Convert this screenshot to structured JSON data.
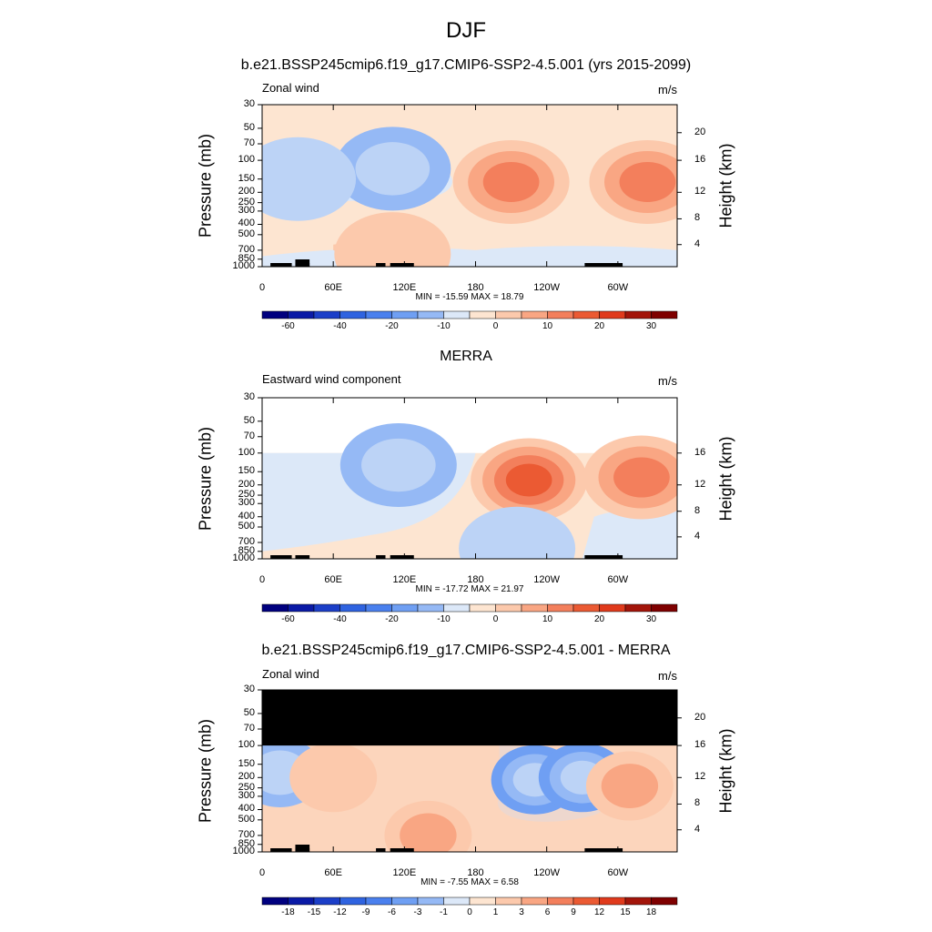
{
  "figure": {
    "title": "DJF"
  },
  "colors": {
    "neg": [
      "#00007f",
      "#0a1aa6",
      "#1c3fc8",
      "#2f63e0",
      "#4a80ee",
      "#6f9ff3",
      "#95b9f5",
      "#bcd3f6",
      "#dce8f8"
    ],
    "neg_light": "#cfe1f7",
    "pos": [
      "#fde5d1",
      "#fcc9ac",
      "#f9a683",
      "#f37f5c",
      "#eb5a33",
      "#e03a1c",
      "#c42a10",
      "#a3150a",
      "#7f0000"
    ],
    "masked": "#000000",
    "land": "#000000"
  },
  "panels": [
    {
      "title": "b.e21.BSSP245cmip6.f19_g17.CMIP6-SSP2-4.5.001 (yrs 2015-2099)",
      "left_label": "Zonal wind",
      "right_label": "m/s",
      "ylabel": "Pressure (mb)",
      "ylabel_right": "Height (km)",
      "pressure_ticks": [
        "30",
        "50",
        "70",
        "100",
        "150",
        "200",
        "250",
        "300",
        "400",
        "500",
        "700",
        "850",
        "1000"
      ],
      "height_ticks": [
        "20",
        "16",
        "12",
        "8",
        "4"
      ],
      "lon_ticks": [
        "0",
        "60E",
        "120E",
        "180",
        "120W",
        "60W"
      ],
      "stats": "MIN = -15.59  MAX =  18.79",
      "colorbar_labels": [
        "-60",
        "-40",
        "-20",
        "-10",
        "0",
        "10",
        "20",
        "30"
      ],
      "masked_top": false,
      "blank_top": false
    },
    {
      "title": "MERRA",
      "left_label": "Eastward wind component",
      "right_label": "m/s",
      "ylabel": "Pressure (mb)",
      "ylabel_right": "Height (km)",
      "pressure_ticks": [
        "30",
        "50",
        "70",
        "100",
        "150",
        "200",
        "250",
        "300",
        "400",
        "500",
        "700",
        "850",
        "1000"
      ],
      "height_ticks": [
        "16",
        "12",
        "8",
        "4"
      ],
      "lon_ticks": [
        "0",
        "60E",
        "120E",
        "180",
        "120W",
        "60W"
      ],
      "stats": "MIN = -17.72  MAX =  21.97",
      "colorbar_labels": [
        "-60",
        "-40",
        "-20",
        "-10",
        "0",
        "10",
        "20",
        "30"
      ],
      "masked_top": false,
      "blank_top": true
    },
    {
      "title": "b.e21.BSSP245cmip6.f19_g17.CMIP6-SSP2-4.5.001 - MERRA",
      "left_label": "Zonal wind",
      "right_label": "m/s",
      "ylabel": "Pressure (mb)",
      "ylabel_right": "Height (km)",
      "pressure_ticks": [
        "30",
        "50",
        "70",
        "100",
        "150",
        "200",
        "250",
        "300",
        "400",
        "500",
        "700",
        "850",
        "1000"
      ],
      "height_ticks": [
        "20",
        "16",
        "12",
        "8",
        "4"
      ],
      "lon_ticks": [
        "0",
        "60E",
        "120E",
        "180",
        "120W",
        "60W"
      ],
      "stats": "MIN = -7.55  MAX =  6.58",
      "colorbar_labels": [
        "-18",
        "-15",
        "-12",
        "-9",
        "-6",
        "-3",
        "-1",
        "0",
        "1",
        "3",
        "6",
        "9",
        "12",
        "15",
        "18"
      ],
      "masked_top": true,
      "blank_top": false
    }
  ],
  "chart_data": [
    {
      "type": "heatmap",
      "title": "b.e21.BSSP245cmip6.f19_g17.CMIP6-SSP2-4.5.001 (yrs 2015-2099)",
      "variable": "Zonal wind",
      "units": "m/s",
      "xlabel": "",
      "ylabel": "Pressure (mb)",
      "ylabel_right": "Height (km)",
      "xlim": [
        0,
        350
      ],
      "ylim": [
        1000,
        30
      ],
      "y_scale": "log",
      "min": -15.59,
      "max": 18.79,
      "features": [
        {
          "lon": 210,
          "p": 160,
          "value": 18.79
        },
        {
          "lon": 325,
          "p": 160,
          "value": 17
        },
        {
          "lon": 110,
          "p": 120,
          "value": -12
        },
        {
          "lon": 30,
          "p": 150,
          "value": -6
        },
        {
          "lon": 110,
          "p": 760,
          "value": 5
        }
      ],
      "levels": [
        -60,
        -50,
        -40,
        -30,
        -20,
        -15,
        -10,
        -5,
        0,
        5,
        10,
        15,
        20,
        25,
        30,
        35
      ]
    },
    {
      "type": "heatmap",
      "title": "MERRA",
      "variable": "Eastward wind component",
      "units": "m/s",
      "xlabel": "",
      "ylabel": "Pressure (mb)",
      "ylabel_right": "Height (km)",
      "xlim": [
        0,
        350
      ],
      "ylim": [
        1000,
        30
      ],
      "y_scale": "log",
      "min": -17.72,
      "max": 21.97,
      "features": [
        {
          "lon": 225,
          "p": 180,
          "value": 21.97
        },
        {
          "lon": 320,
          "p": 170,
          "value": 15
        },
        {
          "lon": 115,
          "p": 130,
          "value": -12
        },
        {
          "lon": 215,
          "p": 800,
          "value": -6
        },
        {
          "lon": 80,
          "p": 800,
          "value": 4
        }
      ],
      "levels": [
        -60,
        -50,
        -40,
        -30,
        -20,
        -15,
        -10,
        -5,
        0,
        5,
        10,
        15,
        20,
        25,
        30,
        35
      ]
    },
    {
      "type": "heatmap",
      "title": "b.e21.BSSP245cmip6.f19_g17.CMIP6-SSP2-4.5.001 - MERRA",
      "variable": "Zonal wind",
      "units": "m/s",
      "xlabel": "",
      "ylabel": "Pressure (mb)",
      "ylabel_right": "Height (km)",
      "xlim": [
        0,
        350
      ],
      "ylim": [
        1000,
        30
      ],
      "y_scale": "log",
      "min": -7.55,
      "max": 6.58,
      "features": [
        {
          "lon": 230,
          "p": 210,
          "value": -7.55
        },
        {
          "lon": 270,
          "p": 200,
          "value": -6
        },
        {
          "lon": 140,
          "p": 700,
          "value": 4
        },
        {
          "lon": 15,
          "p": 180,
          "value": -3
        },
        {
          "lon": 60,
          "p": 200,
          "value": 2
        },
        {
          "lon": 310,
          "p": 240,
          "value": 3
        }
      ],
      "levels": [
        -21,
        -18,
        -15,
        -12,
        -9,
        -6,
        -3,
        -1,
        0,
        1,
        3,
        6,
        9,
        12,
        15,
        18,
        21
      ]
    }
  ]
}
